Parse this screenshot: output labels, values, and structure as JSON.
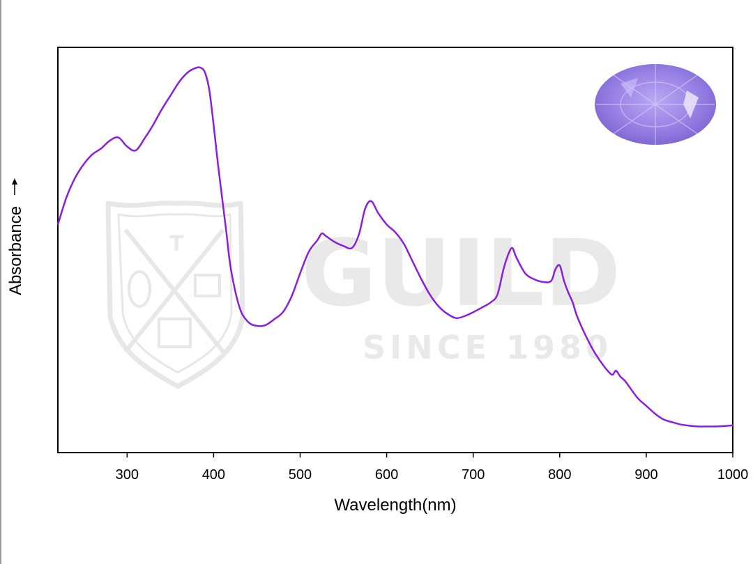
{
  "watermark": {
    "brand": "GUILD",
    "since": "SINCE 1980",
    "crest_letter": "T"
  },
  "gem_inset": {
    "icon": "oval-faceted-gem",
    "color": "#9a84e6"
  },
  "chart_data": {
    "type": "line",
    "title": "",
    "xlabel": "Wavelength(nm)",
    "ylabel": "Absorbance",
    "xlim": [
      220,
      1000
    ],
    "ylim": [
      0,
      1
    ],
    "y_ticks_shown": false,
    "grid": false,
    "legend": "none",
    "line_color": "#8a1ee0",
    "x_ticks": [
      300,
      400,
      500,
      600,
      700,
      800,
      900,
      1000
    ],
    "x_tick_labels": [
      "300",
      "400",
      "500",
      "600",
      "700",
      "800",
      "900",
      "1000"
    ],
    "series": [
      {
        "x": [
          220,
          230,
          240,
          250,
          260,
          270,
          280,
          290,
          300,
          310,
          320,
          330,
          340,
          350,
          360,
          370,
          380,
          385,
          390,
          395,
          400,
          405,
          410,
          415,
          420,
          430,
          440,
          450,
          460,
          470,
          480,
          490,
          500,
          510,
          520,
          525,
          530,
          540,
          550,
          560,
          568,
          575,
          582,
          590,
          600,
          610,
          620,
          630,
          640,
          650,
          660,
          670,
          680,
          690,
          700,
          710,
          720,
          728,
          735,
          740,
          745,
          750,
          760,
          770,
          780,
          790,
          795,
          800,
          805,
          810,
          815,
          820,
          830,
          840,
          850,
          860,
          865,
          870,
          875,
          880,
          890,
          900,
          910,
          920,
          930,
          940,
          950,
          960,
          970,
          980,
          990,
          1000
        ],
        "y": [
          0.585,
          0.655,
          0.705,
          0.74,
          0.765,
          0.78,
          0.8,
          0.808,
          0.785,
          0.775,
          0.805,
          0.84,
          0.88,
          0.915,
          0.95,
          0.975,
          0.987,
          0.987,
          0.975,
          0.93,
          0.84,
          0.74,
          0.65,
          0.56,
          0.47,
          0.372,
          0.335,
          0.325,
          0.327,
          0.342,
          0.36,
          0.4,
          0.46,
          0.515,
          0.545,
          0.562,
          0.555,
          0.54,
          0.53,
          0.525,
          0.56,
          0.625,
          0.645,
          0.615,
          0.585,
          0.565,
          0.535,
          0.49,
          0.445,
          0.405,
          0.375,
          0.356,
          0.345,
          0.35,
          0.36,
          0.372,
          0.385,
          0.405,
          0.47,
          0.505,
          0.525,
          0.5,
          0.46,
          0.445,
          0.438,
          0.44,
          0.47,
          0.48,
          0.44,
          0.41,
          0.385,
          0.35,
          0.3,
          0.258,
          0.225,
          0.2,
          0.21,
          0.195,
          0.185,
          0.17,
          0.14,
          0.12,
          0.1,
          0.085,
          0.078,
          0.072,
          0.069,
          0.067,
          0.067,
          0.067,
          0.068,
          0.07
        ]
      }
    ]
  }
}
